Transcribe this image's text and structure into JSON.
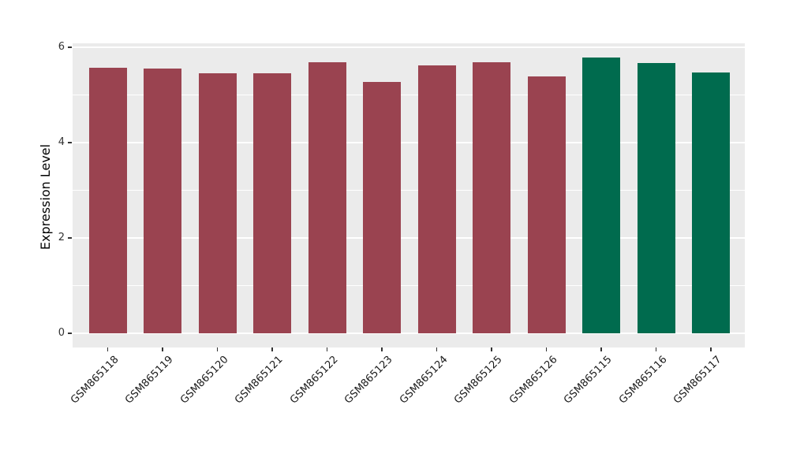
{
  "chart_data": {
    "type": "bar",
    "title": "",
    "xlabel": "",
    "ylabel": "Expression Level",
    "categories": [
      "GSM865118",
      "GSM865119",
      "GSM865120",
      "GSM865121",
      "GSM865122",
      "GSM865123",
      "GSM865124",
      "GSM865125",
      "GSM865126",
      "GSM865115",
      "GSM865116",
      "GSM865117"
    ],
    "values": [
      5.57,
      5.56,
      5.45,
      5.46,
      5.69,
      5.28,
      5.62,
      5.69,
      5.39,
      5.78,
      5.67,
      5.47
    ],
    "bar_colors": [
      "#9A4350",
      "#9A4350",
      "#9A4350",
      "#9A4350",
      "#9A4350",
      "#9A4350",
      "#9A4350",
      "#9A4350",
      "#9A4350",
      "#006B4E",
      "#006B4E",
      "#006B4E"
    ],
    "groups": [
      {
        "color": "#9A4350",
        "samples": [
          "GSM865118",
          "GSM865119",
          "GSM865120",
          "GSM865121",
          "GSM865122",
          "GSM865123",
          "GSM865124",
          "GSM865125",
          "GSM865126"
        ]
      },
      {
        "color": "#006B4E",
        "samples": [
          "GSM865115",
          "GSM865116",
          "GSM865117"
        ]
      }
    ],
    "ylim": [
      0,
      6.07
    ],
    "yticks": [
      0,
      2,
      4,
      6
    ],
    "ytick_labels": [
      "0",
      "2",
      "4",
      "6"
    ],
    "yminor": [
      1,
      3,
      5
    ],
    "grid": "on",
    "legend_position": "none",
    "panel_bg": "#EBEBEB",
    "grid_color": "#FFFFFF",
    "tick_color": "#333333",
    "x_label_rotation_deg": 45
  }
}
